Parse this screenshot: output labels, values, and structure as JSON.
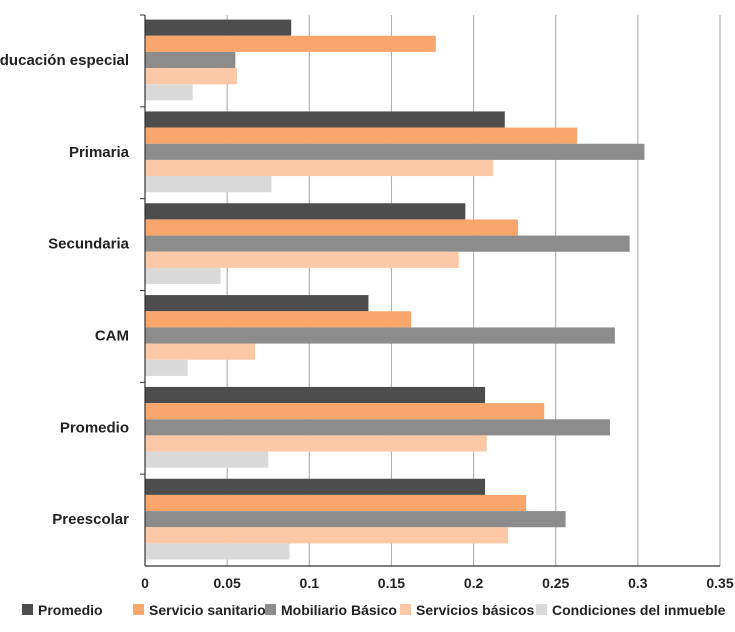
{
  "chart_data": {
    "type": "bar",
    "orientation": "horizontal",
    "categories": [
      "Educación especial",
      "Primaria",
      "Secundaria",
      "CAM",
      "Promedio",
      "Preescolar"
    ],
    "series": [
      {
        "name": "Promedio",
        "color": "#4d4d4d",
        "values": [
          0.089,
          0.219,
          0.195,
          0.136,
          0.207,
          0.207
        ]
      },
      {
        "name": "Servicio sanitario",
        "color": "#f9a66c",
        "values": [
          0.177,
          0.263,
          0.227,
          0.162,
          0.243,
          0.232
        ]
      },
      {
        "name": "Mobiliario Básico",
        "color": "#8c8c8c",
        "values": [
          0.055,
          0.304,
          0.295,
          0.286,
          0.283,
          0.256
        ]
      },
      {
        "name": "Servicios básicos",
        "color": "#fcc8a6",
        "values": [
          0.056,
          0.212,
          0.191,
          0.067,
          0.208,
          0.221
        ]
      },
      {
        "name": "Condiciones del inmueble",
        "color": "#d9d9d9",
        "values": [
          0.029,
          0.077,
          0.046,
          0.026,
          0.075,
          0.088
        ]
      }
    ],
    "xlim": [
      0,
      0.35
    ],
    "xticks": [
      "0",
      "0.05",
      "0.1",
      "0.15",
      "0.2",
      "0.25",
      "0.3",
      "0.35"
    ],
    "grid": "vertical",
    "legend_position": "bottom",
    "title": "",
    "xlabel": "",
    "ylabel": ""
  }
}
